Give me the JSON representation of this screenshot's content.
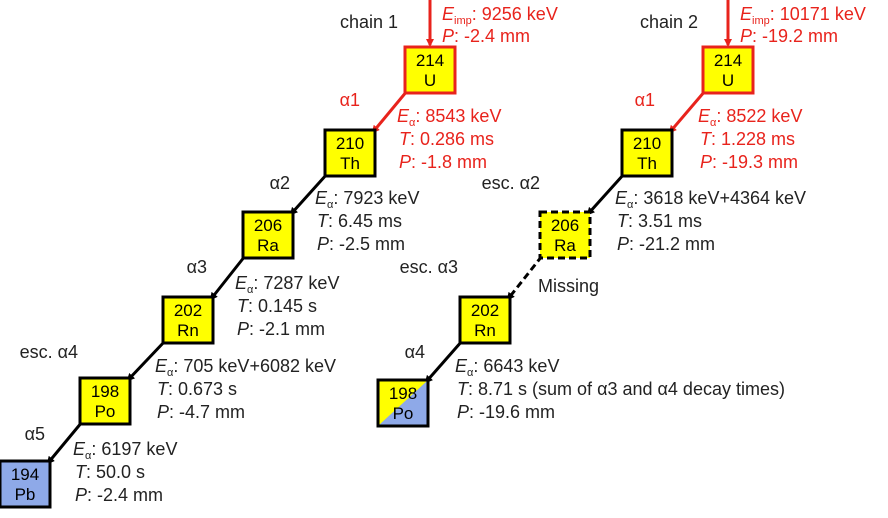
{
  "symbols": {
    "energy": "E",
    "alpha": "α",
    "imp": "imp",
    "time": "T",
    "position": "P",
    "colon": ":"
  },
  "chains": [
    {
      "label": "chain 1",
      "implant": {
        "energy": "9256 keV",
        "position": "-2.4 mm"
      },
      "nodes": [
        {
          "mass": "214",
          "element": "U"
        },
        {
          "mass": "210",
          "element": "Th"
        },
        {
          "mass": "206",
          "element": "Ra"
        },
        {
          "mass": "202",
          "element": "Rn"
        },
        {
          "mass": "198",
          "element": "Po"
        },
        {
          "mass": "194",
          "element": "Pb"
        }
      ],
      "decays": [
        {
          "label": "α1",
          "energy": "8543 keV",
          "time": "0.286 ms",
          "position": "-1.8 mm"
        },
        {
          "label": "α2",
          "energy": "7923 keV",
          "time": "6.45 ms",
          "position": "-2.5 mm"
        },
        {
          "label": "α3",
          "energy": "7287 keV",
          "time": "0.145 s",
          "position": "-2.1 mm"
        },
        {
          "label": "esc. α4",
          "energy": "705 keV+6082 keV",
          "time": "0.673 s",
          "position": "-4.7 mm"
        },
        {
          "label": "α5",
          "energy": "6197 keV",
          "time": "50.0 s",
          "position": "-2.4 mm"
        }
      ]
    },
    {
      "label": "chain 2",
      "implant": {
        "energy": "10171 keV",
        "position": "-19.2 mm"
      },
      "nodes": [
        {
          "mass": "214",
          "element": "U"
        },
        {
          "mass": "210",
          "element": "Th"
        },
        {
          "mass": "206",
          "element": "Ra"
        },
        {
          "mass": "202",
          "element": "Rn"
        },
        {
          "mass": "198",
          "element": "Po"
        }
      ],
      "decays": [
        {
          "label": "α1",
          "energy": "8522 keV",
          "time": "1.228 ms",
          "position": "-19.3 mm"
        },
        {
          "label": "esc. α2",
          "energy": "3618 keV+4364 keV",
          "time": "3.51 ms",
          "position": "-21.2 mm"
        },
        {
          "label": "esc. α3",
          "note": "Missing"
        },
        {
          "label": "α4",
          "energy": "6643 keV",
          "time": "8.71 s (sum of α3 and α4 decay times)",
          "position": "-19.6 mm"
        }
      ]
    }
  ]
}
